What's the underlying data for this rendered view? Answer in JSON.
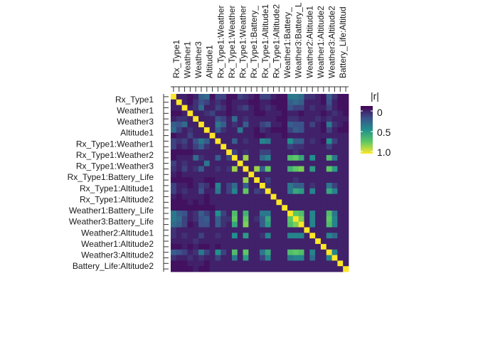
{
  "chart_data": {
    "type": "heatmap",
    "title": "",
    "xlabel": "",
    "ylabel": "",
    "row_labels": [
      "Rx_Type1",
      "Weather1",
      "Weather3",
      "Altitude1",
      "Rx_Type1:Weather1",
      "Rx_Type1:Weather2",
      "Rx_Type1:Weather3",
      "Rx_Type1:Battery_Life",
      "Rx_Type1:Altitude1",
      "Rx_Type1:Altitude2",
      "Weather1:Battery_Life",
      "Weather3:Battery_Life",
      "Weather2:Altitude1",
      "Weather1:Altitude2",
      "Weather3:Altitude2",
      "Battery_Life:Altitude2"
    ],
    "column_labels": [
      "Rx_Type1",
      "Weather1",
      "Weather3",
      "Altitude1",
      "Rx_Type1:Weather",
      "Rx_Type1:Weather",
      "Rx_Type1:Weather",
      "Rx_Type1:Battery_",
      "Rx_Type1:Altitude1",
      "Rx_Type1:Altitude2",
      "Weather1:Battery_",
      "Weather3:Battery_L",
      "Weather2:Altitude1",
      "Weather1:Altitude2",
      "Weather3:Altitude2",
      "Battery_Life:Altitud"
    ],
    "legend": {
      "title": "|r|",
      "ticks": [
        "0",
        "0.5",
        "1.0"
      ],
      "range": [
        1.0,
        0
      ],
      "placement": "right",
      "colors": [
        "#440154",
        "#3b528b",
        "#21908c",
        "#5dc863",
        "#fde725"
      ]
    },
    "grid_size": 32,
    "values": [
      [
        1.0,
        0.1,
        0.1,
        0.05,
        0.1,
        0.3,
        0.35,
        0.05,
        0.2,
        0.2,
        0.05,
        0.05,
        0.2,
        0.15,
        0.1,
        0.05,
        0.2,
        0.2,
        0.1,
        0.05,
        0.05,
        0.4,
        0.4,
        0.35,
        0.15,
        0.15,
        0.1,
        0.05,
        0.3,
        0.15,
        0.05,
        0.05
      ],
      [
        0.1,
        1.0,
        0.1,
        0.05,
        0.15,
        0.25,
        0.2,
        0.1,
        0.15,
        0.1,
        0.05,
        0.1,
        0.1,
        0.1,
        0.05,
        0.05,
        0.1,
        0.1,
        0.05,
        0.05,
        0.05,
        0.3,
        0.35,
        0.3,
        0.1,
        0.1,
        0.1,
        0.05,
        0.25,
        0.1,
        0.05,
        0.05
      ],
      [
        0.1,
        0.1,
        1.0,
        0.1,
        0.15,
        0.35,
        0.1,
        0.1,
        0.2,
        0.15,
        0.05,
        0.1,
        0.15,
        0.2,
        0.1,
        0.05,
        0.1,
        0.15,
        0.1,
        0.05,
        0.05,
        0.25,
        0.2,
        0.2,
        0.1,
        0.15,
        0.1,
        0.1,
        0.2,
        0.1,
        0.05,
        0.05
      ],
      [
        0.05,
        0.05,
        0.1,
        1.0,
        0.1,
        0.1,
        0.15,
        0.2,
        0.1,
        0.1,
        0.05,
        0.1,
        0.1,
        0.1,
        0.1,
        0.05,
        0.05,
        0.1,
        0.1,
        0.1,
        0.05,
        0.1,
        0.1,
        0.05,
        0.1,
        0.1,
        0.1,
        0.05,
        0.1,
        0.15,
        0.1,
        0.05
      ],
      [
        0.1,
        0.15,
        0.15,
        0.1,
        1.0,
        0.1,
        0.1,
        0.1,
        0.25,
        0.2,
        0.1,
        0.35,
        0.1,
        0.15,
        0.1,
        0.1,
        0.1,
        0.1,
        0.1,
        0.05,
        0.05,
        0.15,
        0.15,
        0.1,
        0.1,
        0.1,
        0.15,
        0.1,
        0.15,
        0.1,
        0.1,
        0.1
      ],
      [
        0.3,
        0.25,
        0.35,
        0.1,
        0.1,
        1.0,
        0.1,
        0.1,
        0.4,
        0.3,
        0.1,
        0.15,
        0.1,
        0.3,
        0.1,
        0.1,
        0.2,
        0.25,
        0.1,
        0.1,
        0.05,
        0.3,
        0.25,
        0.25,
        0.1,
        0.2,
        0.1,
        0.05,
        0.4,
        0.15,
        0.1,
        0.05
      ],
      [
        0.35,
        0.2,
        0.1,
        0.15,
        0.1,
        0.1,
        1.0,
        0.1,
        0.3,
        0.15,
        0.1,
        0.1,
        0.4,
        0.1,
        0.1,
        0.05,
        0.15,
        0.1,
        0.05,
        0.05,
        0.05,
        0.2,
        0.3,
        0.25,
        0.1,
        0.1,
        0.1,
        0.05,
        0.2,
        0.1,
        0.05,
        0.05
      ],
      [
        0.05,
        0.1,
        0.1,
        0.2,
        0.1,
        0.1,
        0.1,
        1.0,
        0.1,
        0.1,
        0.1,
        0.1,
        0.1,
        0.1,
        0.1,
        0.05,
        0.05,
        0.1,
        0.1,
        0.1,
        0.05,
        0.1,
        0.1,
        0.1,
        0.1,
        0.1,
        0.1,
        0.1,
        0.1,
        0.1,
        0.1,
        0.1
      ],
      [
        0.2,
        0.15,
        0.2,
        0.1,
        0.25,
        0.4,
        0.3,
        0.1,
        1.0,
        0.1,
        0.1,
        0.3,
        0.1,
        0.15,
        0.1,
        0.1,
        0.45,
        0.4,
        0.1,
        0.1,
        0.1,
        0.5,
        0.3,
        0.3,
        0.1,
        0.15,
        0.1,
        0.05,
        0.5,
        0.2,
        0.1,
        0.1
      ],
      [
        0.2,
        0.1,
        0.15,
        0.1,
        0.2,
        0.3,
        0.15,
        0.1,
        0.1,
        1.0,
        0.1,
        0.1,
        0.1,
        0.1,
        0.1,
        0.1,
        0.1,
        0.1,
        0.1,
        0.1,
        0.1,
        0.2,
        0.15,
        0.15,
        0.1,
        0.1,
        0.1,
        0.1,
        0.2,
        0.1,
        0.1,
        0.1
      ],
      [
        0.05,
        0.05,
        0.05,
        0.05,
        0.1,
        0.1,
        0.1,
        0.1,
        0.1,
        0.1,
        1.0,
        0.2,
        0.1,
        0.15,
        0.1,
        0.1,
        0.2,
        0.2,
        0.1,
        0.1,
        0.1,
        0.1,
        0.15,
        0.1,
        0.1,
        0.1,
        0.1,
        0.1,
        0.1,
        0.1,
        0.1,
        0.1
      ],
      [
        0.05,
        0.1,
        0.1,
        0.1,
        0.35,
        0.15,
        0.1,
        0.1,
        0.3,
        0.1,
        0.2,
        1.0,
        0.1,
        0.85,
        0.1,
        0.1,
        0.35,
        0.45,
        0.1,
        0.1,
        0.1,
        0.7,
        0.75,
        0.6,
        0.1,
        0.5,
        0.1,
        0.1,
        0.7,
        0.4,
        0.1,
        0.1
      ],
      [
        0.2,
        0.1,
        0.15,
        0.1,
        0.1,
        0.1,
        0.4,
        0.1,
        0.1,
        0.1,
        0.1,
        0.1,
        1.0,
        0.1,
        0.1,
        0.1,
        0.1,
        0.1,
        0.1,
        0.1,
        0.1,
        0.1,
        0.1,
        0.1,
        0.1,
        0.1,
        0.1,
        0.1,
        0.1,
        0.1,
        0.1,
        0.1
      ],
      [
        0.15,
        0.1,
        0.2,
        0.1,
        0.15,
        0.3,
        0.1,
        0.1,
        0.15,
        0.1,
        0.15,
        0.85,
        0.1,
        1.0,
        0.1,
        0.85,
        0.3,
        0.75,
        0.1,
        0.1,
        0.1,
        0.65,
        0.75,
        0.8,
        0.1,
        0.55,
        0.1,
        0.1,
        0.75,
        0.55,
        0.1,
        0.1
      ],
      [
        0.1,
        0.05,
        0.1,
        0.1,
        0.1,
        0.1,
        0.1,
        0.1,
        0.1,
        0.1,
        0.1,
        0.1,
        0.1,
        0.1,
        1.0,
        0.1,
        0.1,
        0.1,
        0.1,
        0.1,
        0.1,
        0.1,
        0.1,
        0.1,
        0.1,
        0.1,
        0.1,
        0.1,
        0.1,
        0.1,
        0.1,
        0.1
      ],
      [
        0.05,
        0.05,
        0.05,
        0.05,
        0.1,
        0.1,
        0.05,
        0.05,
        0.1,
        0.1,
        0.1,
        0.1,
        0.1,
        0.85,
        0.1,
        1.0,
        0.1,
        0.2,
        0.1,
        0.1,
        0.1,
        0.1,
        0.15,
        0.1,
        0.1,
        0.1,
        0.1,
        0.1,
        0.1,
        0.1,
        0.1,
        0.1
      ],
      [
        0.2,
        0.1,
        0.1,
        0.05,
        0.1,
        0.2,
        0.15,
        0.05,
        0.45,
        0.1,
        0.2,
        0.35,
        0.1,
        0.3,
        0.1,
        0.1,
        1.0,
        0.15,
        0.1,
        0.1,
        0.1,
        0.4,
        0.3,
        0.3,
        0.1,
        0.15,
        0.1,
        0.1,
        0.4,
        0.2,
        0.1,
        0.1
      ],
      [
        0.2,
        0.1,
        0.15,
        0.1,
        0.1,
        0.25,
        0.1,
        0.1,
        0.4,
        0.1,
        0.2,
        0.45,
        0.1,
        0.75,
        0.1,
        0.2,
        0.15,
        1.0,
        0.1,
        0.1,
        0.1,
        0.4,
        0.6,
        0.55,
        0.1,
        0.45,
        0.1,
        0.1,
        0.6,
        0.45,
        0.1,
        0.1
      ],
      [
        0.1,
        0.05,
        0.1,
        0.1,
        0.1,
        0.1,
        0.05,
        0.1,
        0.1,
        0.1,
        0.1,
        0.1,
        0.1,
        0.1,
        0.1,
        0.1,
        0.1,
        0.1,
        1.0,
        0.1,
        0.1,
        0.1,
        0.1,
        0.1,
        0.1,
        0.1,
        0.1,
        0.1,
        0.1,
        0.1,
        0.1,
        0.1
      ],
      [
        0.05,
        0.05,
        0.05,
        0.1,
        0.05,
        0.1,
        0.05,
        0.1,
        0.1,
        0.1,
        0.1,
        0.1,
        0.1,
        0.1,
        0.1,
        0.1,
        0.1,
        0.1,
        0.1,
        1.0,
        0.1,
        0.1,
        0.1,
        0.1,
        0.1,
        0.1,
        0.1,
        0.1,
        0.1,
        0.1,
        0.1,
        0.1
      ],
      [
        0.05,
        0.05,
        0.05,
        0.05,
        0.05,
        0.05,
        0.05,
        0.05,
        0.1,
        0.1,
        0.1,
        0.1,
        0.1,
        0.1,
        0.1,
        0.1,
        0.1,
        0.1,
        0.1,
        0.1,
        1.0,
        0.1,
        0.1,
        0.1,
        0.1,
        0.1,
        0.1,
        0.1,
        0.1,
        0.1,
        0.1,
        0.1
      ],
      [
        0.4,
        0.3,
        0.25,
        0.1,
        0.15,
        0.3,
        0.2,
        0.1,
        0.5,
        0.2,
        0.1,
        0.7,
        0.1,
        0.65,
        0.1,
        0.1,
        0.4,
        0.4,
        0.1,
        0.1,
        0.1,
        1.0,
        0.75,
        0.7,
        0.1,
        0.45,
        0.1,
        0.1,
        0.7,
        0.4,
        0.1,
        0.1
      ],
      [
        0.4,
        0.35,
        0.2,
        0.1,
        0.15,
        0.25,
        0.3,
        0.1,
        0.3,
        0.15,
        0.15,
        0.75,
        0.1,
        0.75,
        0.1,
        0.15,
        0.3,
        0.6,
        0.1,
        0.1,
        0.1,
        0.75,
        1.0,
        0.8,
        0.1,
        0.45,
        0.1,
        0.1,
        0.75,
        0.45,
        0.1,
        0.1
      ],
      [
        0.35,
        0.3,
        0.2,
        0.05,
        0.1,
        0.25,
        0.25,
        0.1,
        0.3,
        0.15,
        0.1,
        0.6,
        0.1,
        0.8,
        0.1,
        0.1,
        0.3,
        0.55,
        0.1,
        0.1,
        0.1,
        0.7,
        0.8,
        1.0,
        0.1,
        0.45,
        0.1,
        0.1,
        0.7,
        0.45,
        0.1,
        0.1
      ],
      [
        0.15,
        0.1,
        0.1,
        0.1,
        0.1,
        0.1,
        0.1,
        0.1,
        0.1,
        0.1,
        0.1,
        0.1,
        0.1,
        0.1,
        0.1,
        0.1,
        0.1,
        0.1,
        0.1,
        0.1,
        0.1,
        0.1,
        0.1,
        0.1,
        1.0,
        0.1,
        0.1,
        0.1,
        0.1,
        0.1,
        0.1,
        0.1
      ],
      [
        0.15,
        0.1,
        0.15,
        0.1,
        0.1,
        0.2,
        0.1,
        0.1,
        0.15,
        0.1,
        0.1,
        0.5,
        0.1,
        0.55,
        0.1,
        0.1,
        0.15,
        0.45,
        0.1,
        0.1,
        0.1,
        0.45,
        0.45,
        0.45,
        0.1,
        1.0,
        0.1,
        0.1,
        0.45,
        0.35,
        0.1,
        0.1
      ],
      [
        0.1,
        0.1,
        0.1,
        0.1,
        0.15,
        0.1,
        0.1,
        0.1,
        0.1,
        0.1,
        0.1,
        0.1,
        0.1,
        0.1,
        0.1,
        0.1,
        0.1,
        0.1,
        0.1,
        0.1,
        0.1,
        0.1,
        0.1,
        0.1,
        0.1,
        0.1,
        1.0,
        0.1,
        0.1,
        0.1,
        0.1,
        0.1
      ],
      [
        0.05,
        0.05,
        0.1,
        0.05,
        0.1,
        0.05,
        0.05,
        0.1,
        0.05,
        0.1,
        0.1,
        0.1,
        0.1,
        0.1,
        0.1,
        0.1,
        0.1,
        0.1,
        0.1,
        0.1,
        0.1,
        0.1,
        0.1,
        0.1,
        0.1,
        0.1,
        0.1,
        1.0,
        0.1,
        0.1,
        0.1,
        0.1
      ],
      [
        0.3,
        0.25,
        0.2,
        0.1,
        0.15,
        0.4,
        0.2,
        0.1,
        0.5,
        0.2,
        0.1,
        0.7,
        0.1,
        0.75,
        0.1,
        0.1,
        0.4,
        0.6,
        0.1,
        0.1,
        0.1,
        0.7,
        0.75,
        0.7,
        0.1,
        0.45,
        0.1,
        0.1,
        1.0,
        0.45,
        0.1,
        0.1
      ],
      [
        0.15,
        0.1,
        0.1,
        0.15,
        0.1,
        0.15,
        0.1,
        0.1,
        0.2,
        0.1,
        0.1,
        0.4,
        0.1,
        0.55,
        0.1,
        0.1,
        0.2,
        0.45,
        0.1,
        0.1,
        0.1,
        0.4,
        0.45,
        0.45,
        0.1,
        0.35,
        0.1,
        0.1,
        0.45,
        1.0,
        0.1,
        0.1
      ],
      [
        0.05,
        0.05,
        0.05,
        0.1,
        0.1,
        0.1,
        0.05,
        0.1,
        0.1,
        0.1,
        0.1,
        0.1,
        0.1,
        0.1,
        0.1,
        0.1,
        0.1,
        0.1,
        0.1,
        0.1,
        0.1,
        0.1,
        0.1,
        0.1,
        0.1,
        0.1,
        0.1,
        0.1,
        0.1,
        0.1,
        1.0,
        0.1
      ],
      [
        0.05,
        0.05,
        0.05,
        0.05,
        0.1,
        0.05,
        0.05,
        0.1,
        0.1,
        0.1,
        0.1,
        0.1,
        0.1,
        0.1,
        0.1,
        0.1,
        0.1,
        0.1,
        0.1,
        0.1,
        0.1,
        0.1,
        0.1,
        0.1,
        0.1,
        0.1,
        0.1,
        0.1,
        0.1,
        0.1,
        0.1,
        1.0
      ]
    ]
  }
}
